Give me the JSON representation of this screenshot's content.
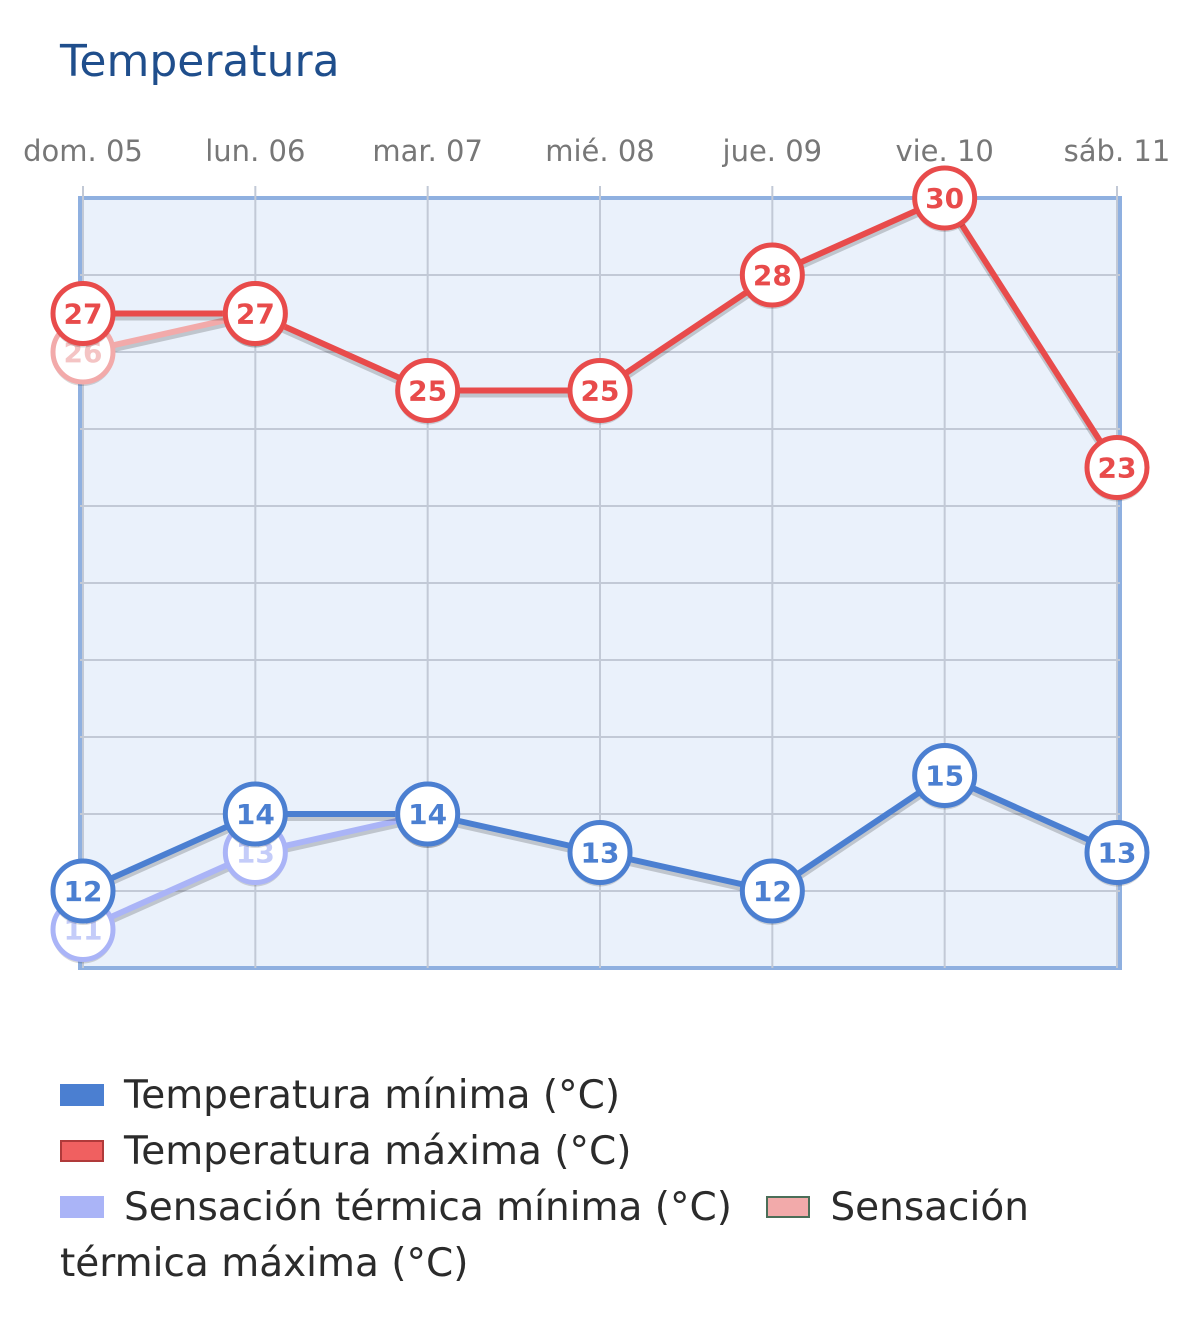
{
  "title": "Temperatura",
  "chart_data": {
    "type": "line",
    "categories": [
      "dom. 05",
      "lun. 06",
      "mar. 07",
      "mié. 08",
      "jue. 09",
      "vie. 10",
      "sáb. 11"
    ],
    "ylim": [
      10,
      30
    ],
    "grid": true,
    "legend_position": "bottom",
    "series": [
      {
        "name": "Sensación térmica máxima (°C)",
        "color": "#f2aaaa",
        "values": [
          26,
          27,
          null,
          null,
          null,
          null,
          null
        ]
      },
      {
        "name": "Sensación térmica mínima (°C)",
        "color": "#aab4f7",
        "values": [
          11,
          13,
          14,
          null,
          null,
          null,
          null
        ]
      },
      {
        "name": "Temperatura máxima (°C)",
        "color": "#e84b4b",
        "values": [
          27,
          27,
          25,
          25,
          28,
          30,
          23
        ]
      },
      {
        "name": "Temperatura mínima (°C)",
        "color": "#4b7fd1",
        "values": [
          12,
          14,
          14,
          13,
          12,
          15,
          13
        ]
      }
    ]
  },
  "legend": [
    {
      "label": "Temperatura mínima (°C)",
      "color": "#4b7fd1"
    },
    {
      "label": "Temperatura máxima (°C)",
      "color": "#e84b4b"
    },
    {
      "label": "Sensación térmica mínima (°C)",
      "color": "#aab4f7"
    },
    {
      "label": "Sensación térmica máxima (°C)",
      "color": "#f2aaaa"
    }
  ]
}
